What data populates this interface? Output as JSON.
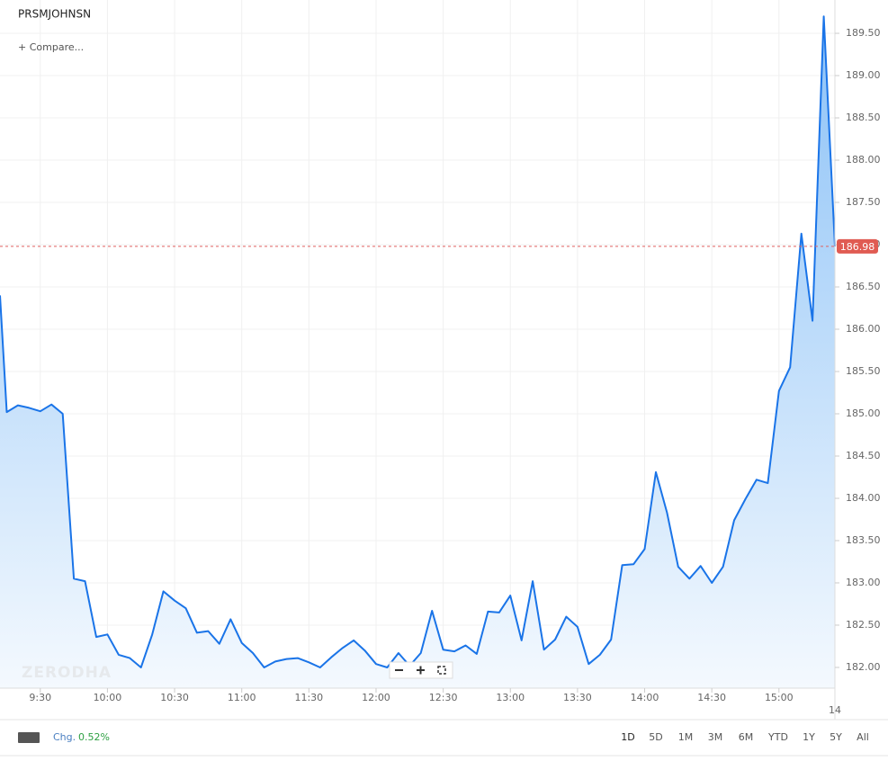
{
  "chart_data": {
    "type": "area",
    "title": "PRSMJOHNSN",
    "compare": "+ Compare...",
    "watermark": "ZERODHA",
    "edge_label": "14",
    "color": "#1a74e8",
    "x": [
      552,
      555,
      560,
      565,
      570,
      575,
      580,
      585,
      590,
      595,
      600,
      605,
      610,
      615,
      620,
      625,
      630,
      635,
      640,
      645,
      650,
      655,
      660,
      665,
      670,
      675,
      680,
      685,
      690,
      695,
      700,
      705,
      710,
      715,
      720,
      725,
      730,
      735,
      740,
      745,
      750,
      755,
      760,
      765,
      770,
      775,
      780,
      785,
      790,
      795,
      800,
      805,
      810,
      815,
      820,
      825,
      830,
      835,
      840,
      845,
      850,
      855,
      860,
      865,
      870,
      875,
      880,
      885,
      890,
      895,
      900,
      905,
      910,
      915,
      920,
      925
    ],
    "values": [
      186.4,
      185.02,
      185.1,
      185.07,
      185.03,
      185.11,
      185.0,
      183.05,
      183.02,
      182.36,
      182.39,
      182.15,
      182.11,
      182.0,
      182.39,
      182.9,
      182.79,
      182.7,
      182.41,
      182.43,
      182.28,
      182.57,
      182.29,
      182.17,
      182.0,
      182.07,
      182.1,
      182.11,
      182.06,
      182.0,
      182.12,
      182.23,
      182.32,
      182.2,
      182.04,
      182.0,
      182.17,
      182.02,
      182.17,
      182.67,
      182.21,
      182.19,
      182.26,
      182.16,
      182.66,
      182.65,
      182.85,
      182.32,
      183.02,
      182.21,
      182.33,
      182.6,
      182.48,
      182.04,
      182.15,
      182.33,
      183.21,
      183.22,
      183.4,
      184.31,
      183.83,
      183.19,
      183.05,
      183.2,
      183.0,
      183.19,
      183.74,
      183.99,
      184.22,
      184.18,
      185.27,
      185.55,
      187.13,
      186.1,
      189.7,
      186.98
    ],
    "last_price": {
      "value": 186.98,
      "label": "186.98"
    },
    "xlim": [
      552,
      925
    ],
    "xticks": [
      {
        "value": 570,
        "label": "9:30"
      },
      {
        "value": 600,
        "label": "10:00"
      },
      {
        "value": 630,
        "label": "10:30"
      },
      {
        "value": 660,
        "label": "11:00"
      },
      {
        "value": 690,
        "label": "11:30"
      },
      {
        "value": 720,
        "label": "12:00"
      },
      {
        "value": 750,
        "label": "12:30"
      },
      {
        "value": 780,
        "label": "13:00"
      },
      {
        "value": 810,
        "label": "13:30"
      },
      {
        "value": 840,
        "label": "14:00"
      },
      {
        "value": 870,
        "label": "14:30"
      },
      {
        "value": 900,
        "label": "15:00"
      }
    ],
    "ylim": [
      181.755,
      189.894
    ],
    "yticks": [
      {
        "value": 182,
        "label": "182.00"
      },
      {
        "value": 182.5,
        "label": "182.50"
      },
      {
        "value": 183,
        "label": "183.00"
      },
      {
        "value": 183.5,
        "label": "183.50"
      },
      {
        "value": 184,
        "label": "184.00"
      },
      {
        "value": 184.5,
        "label": "184.50"
      },
      {
        "value": 185,
        "label": "185.00"
      },
      {
        "value": 185.5,
        "label": "185.50"
      },
      {
        "value": 186,
        "label": "186.00"
      },
      {
        "value": 186.5,
        "label": "186.50"
      },
      {
        "value": 187,
        "label": "187.00"
      },
      {
        "value": 187.5,
        "label": "187.50"
      },
      {
        "value": 188,
        "label": "188.00"
      },
      {
        "value": 188.5,
        "label": "188.50"
      },
      {
        "value": 189,
        "label": "189.00"
      },
      {
        "value": 189.5,
        "label": "189.50"
      }
    ],
    "grid": true
  },
  "toolbar": {
    "change_label": "Chg.",
    "change_value": "0.52%",
    "ranges": [
      "1D",
      "5D",
      "1M",
      "3M",
      "6M",
      "YTD",
      "1Y",
      "5Y",
      "All"
    ]
  }
}
